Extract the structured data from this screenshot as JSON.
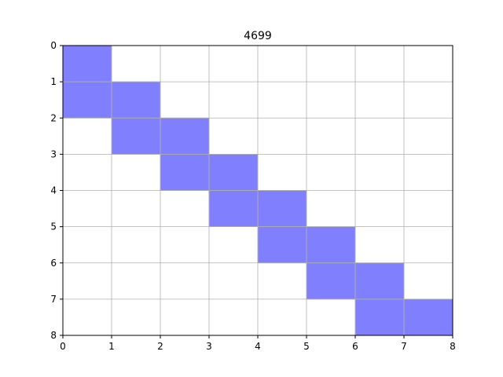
{
  "chart_data": {
    "type": "heatmap",
    "title": "4699",
    "xlabel": "",
    "ylabel": "",
    "xlim": [
      0,
      8
    ],
    "ylim": [
      0,
      8
    ],
    "y_inverted": true,
    "grid": true,
    "x_ticks": [
      "0",
      "1",
      "2",
      "3",
      "4",
      "5",
      "6",
      "7",
      "8"
    ],
    "y_ticks": [
      "0",
      "1",
      "2",
      "3",
      "4",
      "5",
      "6",
      "7",
      "8"
    ],
    "cell_color": "#8080ff",
    "cell_edge_color": "#a0a0a0",
    "cells": [
      {
        "x": 0,
        "y": 0
      },
      {
        "x": 0,
        "y": 1
      },
      {
        "x": 1,
        "y": 1
      },
      {
        "x": 1,
        "y": 2
      },
      {
        "x": 2,
        "y": 2
      },
      {
        "x": 2,
        "y": 3
      },
      {
        "x": 3,
        "y": 3
      },
      {
        "x": 3,
        "y": 4
      },
      {
        "x": 4,
        "y": 4
      },
      {
        "x": 4,
        "y": 5
      },
      {
        "x": 5,
        "y": 5
      },
      {
        "x": 5,
        "y": 6
      },
      {
        "x": 6,
        "y": 6
      },
      {
        "x": 6,
        "y": 7
      },
      {
        "x": 7,
        "y": 7
      }
    ]
  }
}
